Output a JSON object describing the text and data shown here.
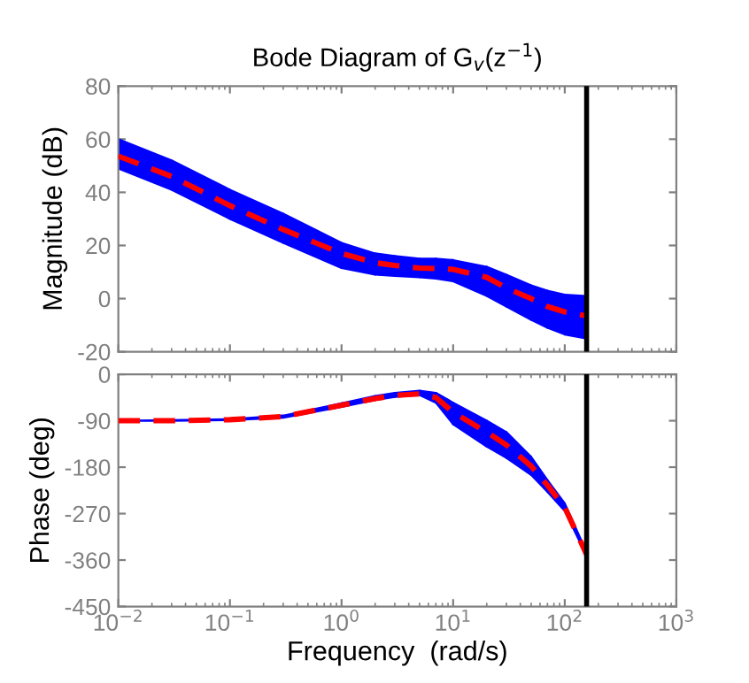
{
  "chart_data": [
    {
      "type": "line",
      "title": "Bode Diagram of G$_{v}$(z$^{−1}$)",
      "ylabel": "Magnitude (dB)",
      "x": [
        0.01,
        0.03,
        0.1,
        0.3,
        1,
        2,
        3,
        5,
        7,
        10,
        20,
        30,
        50,
        70,
        100,
        157
      ],
      "series": [
        {
          "color": "#ff0000",
          "colors": [
            "#0000ff",
            "#0000ff",
            "#0000ff",
            "#0000ff",
            "#0000ff",
            "#0000ff",
            "#0000ff",
            "#0000ff",
            "#0000ff",
            "#0000ff",
            "#0000ff",
            "#0000ff",
            "#0000ff",
            "#0000ff",
            "#0000ff",
            "#0000ff"
          ],
          "line_style": "dashed",
          "values": [
            53.6,
            46,
            35,
            26,
            17,
            13.5,
            12.5,
            11.5,
            11.3,
            11,
            8,
            4,
            0,
            -3,
            -5,
            -6.5
          ],
          "lower": [
            49,
            41,
            30,
            21,
            11.5,
            9,
            8.5,
            8,
            7.5,
            6.5,
            1,
            -3,
            -8,
            -11,
            -13.5,
            -15
          ],
          "upper": [
            60,
            52,
            41,
            32,
            21,
            17,
            16,
            15,
            15,
            14.5,
            12,
            9,
            5,
            3,
            1.5,
            1
          ]
        }
      ],
      "log": "x",
      "xlim": [
        0.01,
        1000
      ],
      "xticks": [
        {
          "value": 0.01,
          "label": null
        },
        {
          "value": 0.1,
          "label": null
        },
        {
          "value": 1,
          "label": null
        },
        {
          "value": 10,
          "label": null
        },
        {
          "value": 100,
          "label": null
        },
        {
          "value": 1000,
          "label": null
        }
      ],
      "ylim": [
        -20,
        80
      ],
      "yticks": [
        -20,
        0,
        20,
        40,
        60,
        80
      ],
      "tick_labels": "y",
      "grid": false,
      "ref_lines": [
        {
          "axis": "x",
          "value": 157,
          "color": "#000000"
        }
      ]
    },
    {
      "type": "line",
      "xlabel": "Frequency  (rad/s)",
      "ylabel": "Phase (deg)",
      "x": [
        0.01,
        0.03,
        0.1,
        0.3,
        1,
        2,
        3,
        5,
        7,
        10,
        20,
        30,
        50,
        70,
        100,
        157
      ],
      "series": [
        {
          "color": "#ff0000",
          "colors": [
            "#0000ff",
            "#0000ff",
            "#0000ff",
            "#0000ff",
            "#0000ff",
            "#0000ff",
            "#0000ff",
            "#0000ff",
            "#0000ff",
            "#0000ff",
            "#0000ff",
            "#0000ff",
            "#0000ff",
            "#0000ff",
            "#0000ff",
            "#0000ff"
          ],
          "line_style": "dashed",
          "values": [
            -90,
            -90,
            -88,
            -82,
            -60,
            -47,
            -41,
            -38,
            -45,
            -74,
            -112,
            -137,
            -178,
            -215,
            -258,
            -349
          ],
          "lower": [
            -90,
            -90,
            -89,
            -84,
            -63,
            -50,
            -44,
            -40,
            -55,
            -97,
            -140,
            -162,
            -195,
            -228,
            -265,
            -352
          ],
          "upper": [
            -90,
            -89,
            -87,
            -80,
            -56,
            -42,
            -36,
            -32,
            -36,
            -55,
            -90,
            -112,
            -160,
            -205,
            -250,
            -345
          ]
        }
      ],
      "log": "x",
      "xlim": [
        0.01,
        1000
      ],
      "xticks": [
        {
          "value": 0.01,
          "label": "10$^{−2}$"
        },
        {
          "value": 0.1,
          "label": "10$^{−1}$"
        },
        {
          "value": 1,
          "label": "10$^{0}$"
        },
        {
          "value": 10,
          "label": "10$^{1}$"
        },
        {
          "value": 100,
          "label": "10$^{2}$"
        },
        {
          "value": 1000,
          "label": "10$^{3}$"
        }
      ],
      "ylim": [
        -450,
        0
      ],
      "yticks": [
        -450,
        -360,
        -270,
        -180,
        -90,
        0
      ],
      "grid": false,
      "ref_lines": [
        {
          "axis": "x",
          "value": 157,
          "color": "#000000"
        }
      ]
    }
  ]
}
